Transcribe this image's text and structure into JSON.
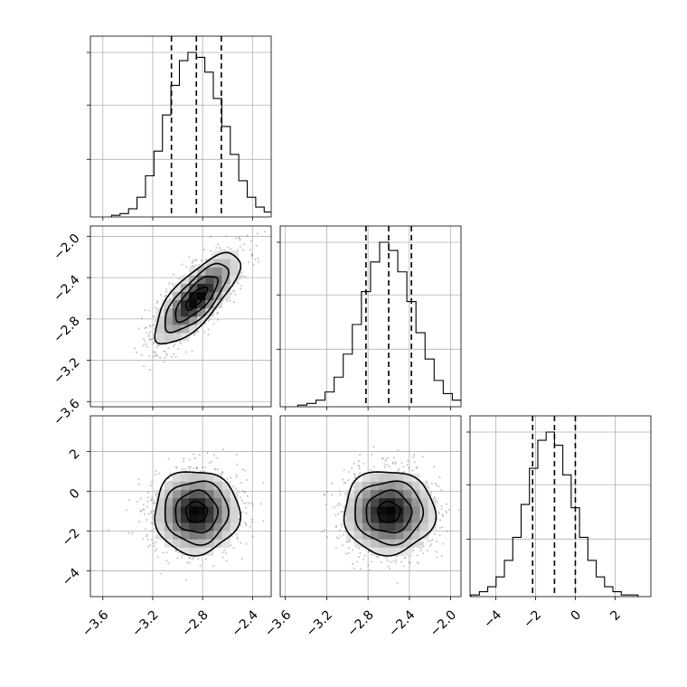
{
  "chart_data": {
    "type": "corner",
    "parameters": [
      {
        "mean": -2.85,
        "sd": 0.17,
        "range": [
          -3.7,
          -2.25
        ],
        "quantiles": [
          -3.05,
          -2.85,
          -2.65
        ],
        "ticks": [
          -3.6,
          -3.2,
          -2.8,
          -2.4
        ],
        "tick_labels": [
          "−3.6",
          "−3.2",
          "−2.8",
          "−2.4"
        ]
      },
      {
        "mean": -2.6,
        "sd": 0.22,
        "range": [
          -3.65,
          -1.9
        ],
        "quantiles": [
          -2.82,
          -2.6,
          -2.38
        ],
        "ticks": [
          -3.6,
          -3.2,
          -2.8,
          -2.4,
          -2.0
        ],
        "tick_labels": [
          "−3.6",
          "−3.2",
          "−2.8",
          "−2.4",
          "−2.0"
        ]
      },
      {
        "mean": -1.05,
        "sd": 1.05,
        "range": [
          -5.3,
          3.8
        ],
        "quantiles": [
          -2.15,
          -1.05,
          0.0
        ],
        "ticks": [
          -4,
          -2,
          0,
          2
        ],
        "tick_labels": [
          "−4",
          "−2",
          "0",
          "2"
        ]
      }
    ],
    "histograms": [
      {
        "bins": 20,
        "counts": [
          1,
          2,
          5,
          12,
          25,
          40,
          62,
          80,
          95,
          100,
          97,
          88,
          72,
          55,
          38,
          22,
          12,
          6,
          3,
          1
        ]
      },
      {
        "bins": 20,
        "counts": [
          1,
          2,
          4,
          9,
          18,
          32,
          50,
          70,
          88,
          100,
          95,
          82,
          64,
          45,
          29,
          16,
          8,
          4,
          2,
          1
        ]
      },
      {
        "bins": 20,
        "counts": [
          1,
          3,
          6,
          12,
          22,
          36,
          56,
          78,
          95,
          100,
          92,
          74,
          54,
          36,
          22,
          12,
          6,
          3,
          1,
          1
        ]
      }
    ],
    "correlations": {
      "1-0": 0.75,
      "2-0": 0.0,
      "2-1": 0.0
    },
    "contour_levels_sigma": [
      0.5,
      1.0,
      1.5,
      2.0
    ],
    "grid": true,
    "legend": "none"
  }
}
